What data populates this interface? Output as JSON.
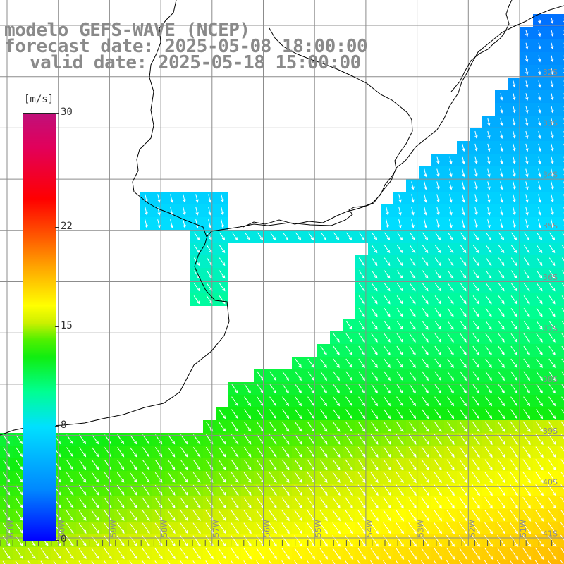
{
  "title": {
    "line1": "modelo GEFS-WAVE (NCEP)",
    "line2": "forecast date: 2025-05-08 18:00:00",
    "line3": "valid date: 2025-05-18 15:00:00"
  },
  "colorbar": {
    "unit": "[m/s]",
    "min": 0,
    "max": 30,
    "ticks": [
      "30",
      "22",
      "15",
      "8",
      "0"
    ],
    "tick_values": [
      30,
      22,
      15,
      8,
      0
    ]
  },
  "map": {
    "longitude_labels": [
      "61W",
      "60W",
      "59W",
      "58W",
      "57W",
      "56W",
      "55W",
      "54W",
      "53W",
      "52W",
      "51W"
    ],
    "latitude_labels": [
      "32S",
      "33S",
      "34S",
      "35S",
      "36S",
      "37S",
      "38S",
      "39S",
      "40S",
      "41S"
    ],
    "arrow_color": "#ffffff",
    "coastline_color": "#000000",
    "grid_color": "#8c8c8c",
    "wind_direction": "from north-northwest, pointing southeast"
  }
}
